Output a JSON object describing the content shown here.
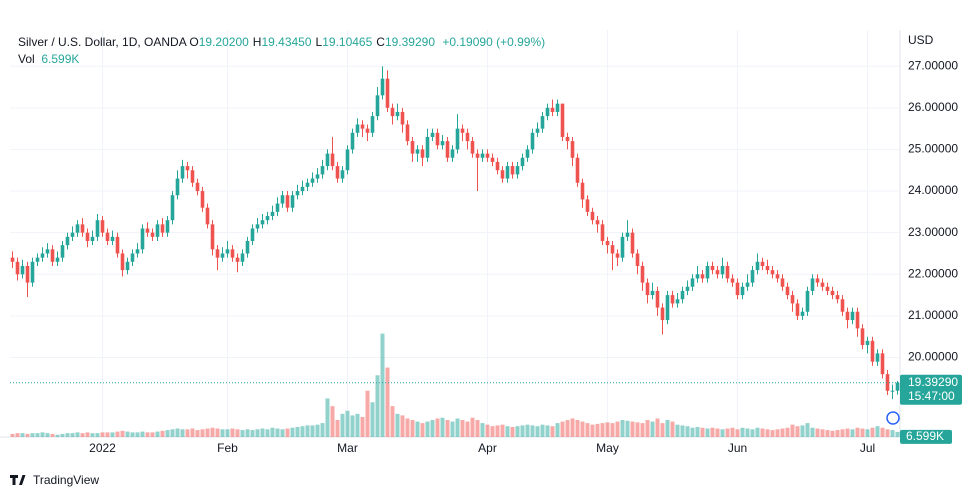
{
  "chart_data": {
    "type": "candlestick",
    "title": "Silver / U.S. Dollar, 1D, OANDA",
    "ohlc_legend": [
      {
        "key": "O",
        "value": "19.20200"
      },
      {
        "key": "H",
        "value": "19.43450"
      },
      {
        "key": "L",
        "value": "19.10465"
      },
      {
        "key": "C",
        "value": "19.39290"
      }
    ],
    "change": "+0.19090 (+0.99%)",
    "volume_legend": {
      "key": "Vol",
      "value": "6.599K"
    },
    "currency": "USD",
    "colors": {
      "up": "#26a69a",
      "down": "#ef5350"
    },
    "grid": true,
    "xlim": [
      -0.5,
      177.5
    ],
    "xticks": [
      {
        "value": 18,
        "label": "2022"
      },
      {
        "value": 43,
        "label": "Feb"
      },
      {
        "value": 67,
        "label": "Mar"
      },
      {
        "value": 95,
        "label": "Apr"
      },
      {
        "value": 119,
        "label": "May"
      },
      {
        "value": 145,
        "label": "Jun"
      },
      {
        "value": 171,
        "label": "Jul"
      }
    ],
    "ylim": [
      18.09,
      27.87
    ],
    "yticks": [
      {
        "value": 20,
        "label": "20.00000"
      },
      {
        "value": 21,
        "label": "21.00000"
      },
      {
        "value": 22,
        "label": "22.00000"
      },
      {
        "value": 23,
        "label": "23.00000"
      },
      {
        "value": 24,
        "label": "24.00000"
      },
      {
        "value": 25,
        "label": "25.00000"
      },
      {
        "value": 26,
        "label": "26.00000"
      },
      {
        "value": 27,
        "label": "27.00000"
      }
    ],
    "vlim": [
      0,
      140
    ],
    "last_price": {
      "value": 19.3929,
      "label": "19.39290",
      "countdown": "15:47:00"
    },
    "logo": "TradingView",
    "open": [
      22.4,
      22.3,
      22.0,
      22.2,
      21.8,
      22.3,
      22.4,
      22.5,
      22.6,
      22.3,
      22.4,
      22.7,
      22.9,
      23.0,
      23.2,
      23.0,
      22.8,
      22.9,
      23.3,
      23.0,
      22.8,
      22.9,
      22.5,
      22.1,
      22.3,
      22.5,
      22.6,
      23.1,
      23.0,
      22.9,
      23.2,
      23.0,
      23.3,
      23.9,
      24.3,
      24.6,
      24.5,
      24.2,
      24.0,
      23.6,
      23.2,
      22.6,
      22.4,
      22.5,
      22.6,
      22.4,
      22.3,
      22.5,
      22.8,
      23.1,
      23.2,
      23.3,
      23.4,
      23.5,
      23.7,
      23.9,
      23.6,
      23.9,
      24.0,
      24.1,
      24.2,
      24.3,
      24.4,
      24.6,
      24.9,
      24.6,
      24.3,
      24.5,
      25.0,
      25.4,
      25.6,
      25.5,
      25.4,
      25.8,
      26.3,
      26.7,
      26.0,
      25.8,
      25.9,
      25.6,
      25.2,
      24.9,
      25.0,
      24.8,
      25.3,
      25.4,
      25.1,
      25.2,
      24.8,
      25.0,
      25.5,
      25.4,
      25.2,
      24.9,
      24.8,
      24.9,
      24.8,
      24.7,
      24.5,
      24.3,
      24.6,
      24.4,
      24.6,
      24.8,
      25.0,
      25.4,
      25.5,
      25.8,
      26.0,
      25.9,
      26.1,
      25.3,
      25.2,
      24.8,
      24.2,
      23.8,
      23.5,
      23.3,
      23.2,
      22.8,
      22.7,
      22.5,
      22.4,
      22.9,
      23.0,
      22.5,
      22.2,
      21.8,
      21.5,
      21.6,
      21.2,
      20.9,
      21.5,
      21.3,
      21.4,
      21.6,
      21.7,
      21.9,
      22.0,
      21.9,
      22.2,
      22.1,
      22.0,
      22.2,
      21.9,
      21.8,
      21.5,
      21.7,
      21.8,
      22.1,
      22.3,
      22.2,
      22.1,
      22.0,
      21.9,
      21.7,
      21.5,
      21.3,
      21.0,
      21.1,
      21.6,
      21.9,
      21.8,
      21.7,
      21.6,
      21.5,
      21.4,
      21.1,
      20.9,
      21.1,
      20.7,
      20.3,
      20.4,
      19.9,
      20.1,
      19.6,
      19.2,
      19.202
    ],
    "high": [
      22.55,
      22.4,
      22.35,
      22.3,
      22.4,
      22.5,
      22.65,
      22.75,
      22.7,
      22.55,
      22.8,
      23.0,
      23.15,
      23.3,
      23.35,
      23.1,
      23.05,
      23.45,
      23.4,
      23.1,
      23.05,
      23.0,
      22.6,
      22.4,
      22.6,
      22.75,
      23.2,
      23.25,
      23.1,
      23.3,
      23.35,
      23.4,
      24.0,
      24.5,
      24.75,
      24.7,
      24.6,
      24.3,
      24.1,
      23.7,
      23.3,
      22.7,
      22.65,
      22.8,
      22.7,
      22.5,
      22.6,
      22.9,
      23.2,
      23.35,
      23.45,
      23.5,
      23.65,
      23.85,
      24.0,
      24.0,
      24.0,
      24.15,
      24.25,
      24.3,
      24.45,
      24.55,
      24.75,
      25.0,
      25.3,
      24.7,
      24.6,
      25.1,
      25.5,
      25.75,
      25.7,
      25.6,
      25.9,
      26.5,
      27.0,
      26.9,
      26.1,
      26.1,
      26.0,
      25.7,
      25.3,
      25.1,
      25.1,
      25.5,
      25.5,
      25.5,
      25.35,
      25.3,
      25.1,
      25.85,
      25.6,
      25.5,
      25.3,
      25.0,
      25.0,
      25.0,
      24.9,
      24.8,
      24.6,
      24.7,
      24.7,
      24.7,
      24.9,
      25.1,
      25.5,
      25.65,
      25.9,
      26.1,
      26.2,
      26.2,
      26.1,
      25.4,
      25.3,
      24.9,
      24.3,
      23.9,
      23.6,
      23.4,
      23.3,
      22.9,
      22.8,
      22.6,
      23.0,
      23.3,
      23.1,
      22.6,
      22.3,
      21.9,
      21.8,
      21.7,
      21.3,
      21.6,
      21.6,
      21.55,
      21.7,
      21.85,
      22.0,
      22.2,
      22.1,
      22.3,
      22.3,
      22.2,
      22.4,
      22.3,
      22.0,
      21.9,
      21.8,
      22.0,
      22.2,
      22.5,
      22.4,
      22.35,
      22.2,
      22.1,
      22.0,
      21.8,
      21.6,
      21.4,
      21.2,
      21.7,
      22.0,
      22.0,
      21.9,
      21.8,
      21.7,
      21.6,
      21.5,
      21.2,
      21.2,
      21.2,
      20.8,
      20.5,
      20.5,
      20.2,
      20.2,
      19.7,
      19.35,
      19.4345
    ],
    "low": [
      22.15,
      21.85,
      21.9,
      21.45,
      21.7,
      22.2,
      22.3,
      22.4,
      22.2,
      22.2,
      22.3,
      22.6,
      22.8,
      22.9,
      22.9,
      22.65,
      22.7,
      22.8,
      22.9,
      22.7,
      22.7,
      22.4,
      21.95,
      22.0,
      22.2,
      22.4,
      22.5,
      22.9,
      22.8,
      22.8,
      22.9,
      22.9,
      23.2,
      23.8,
      24.2,
      24.3,
      24.1,
      23.9,
      23.5,
      23.1,
      22.45,
      22.1,
      22.3,
      22.4,
      22.3,
      22.05,
      22.2,
      22.4,
      22.7,
      23.0,
      23.1,
      23.2,
      23.3,
      23.4,
      23.6,
      23.5,
      23.5,
      23.8,
      23.9,
      24.0,
      24.1,
      24.2,
      24.3,
      24.5,
      24.5,
      24.2,
      24.2,
      24.4,
      24.9,
      25.3,
      25.3,
      25.2,
      25.3,
      25.7,
      26.2,
      25.9,
      25.6,
      25.7,
      25.4,
      25.1,
      24.7,
      24.7,
      24.6,
      24.7,
      25.2,
      25.0,
      25.0,
      24.7,
      24.7,
      24.9,
      25.2,
      25.0,
      24.8,
      24.0,
      24.7,
      24.7,
      24.6,
      24.4,
      24.2,
      24.2,
      24.3,
      24.3,
      24.5,
      24.7,
      24.9,
      25.3,
      25.4,
      25.7,
      25.8,
      25.8,
      25.2,
      25.0,
      24.6,
      24.1,
      23.6,
      23.4,
      23.2,
      23.0,
      22.7,
      22.5,
      22.1,
      22.2,
      22.3,
      22.8,
      22.4,
      22.0,
      21.6,
      21.3,
      21.4,
      21.0,
      20.55,
      20.8,
      21.2,
      21.2,
      21.3,
      21.5,
      21.6,
      21.8,
      21.8,
      21.8,
      22.0,
      21.9,
      21.9,
      21.8,
      21.7,
      21.4,
      21.4,
      21.6,
      21.7,
      22.0,
      22.1,
      22.0,
      21.9,
      21.8,
      21.6,
      21.4,
      21.1,
      20.9,
      20.9,
      21.0,
      21.5,
      21.7,
      21.6,
      21.5,
      21.4,
      21.3,
      21.0,
      20.7,
      20.8,
      20.5,
      20.2,
      20.1,
      19.8,
      19.8,
      19.5,
      19.1,
      19.0,
      19.10465
    ],
    "close": [
      22.3,
      22.0,
      22.2,
      21.8,
      22.3,
      22.4,
      22.5,
      22.6,
      22.3,
      22.4,
      22.7,
      22.9,
      23.0,
      23.2,
      23.0,
      22.8,
      22.9,
      23.3,
      23.0,
      22.8,
      22.9,
      22.5,
      22.1,
      22.3,
      22.5,
      22.6,
      23.1,
      23.0,
      22.9,
      23.2,
      23.0,
      23.3,
      23.9,
      24.3,
      24.6,
      24.5,
      24.2,
      24.0,
      23.6,
      23.2,
      22.6,
      22.4,
      22.5,
      22.6,
      22.4,
      22.3,
      22.5,
      22.8,
      23.1,
      23.2,
      23.3,
      23.4,
      23.5,
      23.7,
      23.9,
      23.6,
      23.9,
      24.0,
      24.1,
      24.2,
      24.3,
      24.4,
      24.6,
      24.9,
      24.6,
      24.3,
      24.5,
      25.0,
      25.4,
      25.6,
      25.5,
      25.4,
      25.8,
      26.3,
      26.7,
      26.0,
      25.8,
      25.9,
      25.6,
      25.2,
      24.9,
      25.0,
      24.8,
      25.3,
      25.4,
      25.1,
      25.2,
      24.8,
      25.0,
      25.5,
      25.4,
      25.2,
      24.9,
      24.8,
      24.9,
      24.8,
      24.7,
      24.5,
      24.3,
      24.6,
      24.4,
      24.6,
      24.8,
      25.0,
      25.4,
      25.5,
      25.8,
      26.0,
      25.9,
      26.1,
      25.3,
      25.2,
      24.8,
      24.2,
      23.8,
      23.5,
      23.3,
      23.2,
      22.8,
      22.7,
      22.5,
      22.4,
      22.9,
      23.0,
      22.5,
      22.2,
      21.8,
      21.5,
      21.6,
      21.2,
      20.9,
      21.5,
      21.3,
      21.4,
      21.6,
      21.7,
      21.9,
      22.0,
      21.9,
      22.2,
      22.1,
      22.0,
      22.2,
      21.9,
      21.8,
      21.5,
      21.7,
      21.8,
      22.1,
      22.3,
      22.2,
      22.1,
      22.0,
      21.9,
      21.7,
      21.5,
      21.3,
      21.0,
      21.1,
      21.6,
      21.9,
      21.8,
      21.7,
      21.6,
      21.5,
      21.4,
      21.1,
      20.9,
      21.1,
      20.7,
      20.3,
      20.4,
      19.9,
      20.1,
      19.6,
      19.2,
      19.202,
      19.3929
    ],
    "volume": [
      4,
      5,
      5,
      4,
      5,
      5,
      6,
      5,
      4,
      3,
      4,
      5,
      5,
      6,
      5,
      6,
      5,
      5,
      6,
      6,
      6,
      7,
      8,
      7,
      6,
      6,
      7,
      6,
      6,
      7,
      8,
      9,
      10,
      11,
      10,
      10,
      11,
      9,
      10,
      11,
      12,
      11,
      10,
      10,
      11,
      10,
      9,
      10,
      9,
      10,
      11,
      10,
      12,
      11,
      10,
      11,
      12,
      13,
      14,
      15,
      15,
      16,
      18,
      50,
      40,
      22,
      30,
      34,
      28,
      30,
      26,
      60,
      45,
      80,
      134,
      90,
      40,
      30,
      28,
      24,
      22,
      20,
      18,
      20,
      22,
      24,
      25,
      22,
      20,
      24,
      22,
      20,
      25,
      22,
      18,
      16,
      14,
      15,
      16,
      14,
      13,
      14,
      15,
      16,
      15,
      14,
      16,
      15,
      14,
      18,
      20,
      22,
      24,
      22,
      20,
      18,
      16,
      17,
      18,
      19,
      18,
      20,
      22,
      21,
      20,
      19,
      18,
      22,
      20,
      24,
      18,
      22,
      20,
      16,
      15,
      14,
      12,
      13,
      12,
      11,
      12,
      11,
      10,
      11,
      12,
      10,
      12,
      11,
      10,
      12,
      11,
      10,
      9,
      10,
      11,
      12,
      16,
      14,
      15,
      18,
      12,
      11,
      10,
      9,
      8,
      9,
      10,
      11,
      10,
      12,
      11,
      10,
      12,
      14,
      12,
      10,
      9,
      6.599
    ]
  }
}
